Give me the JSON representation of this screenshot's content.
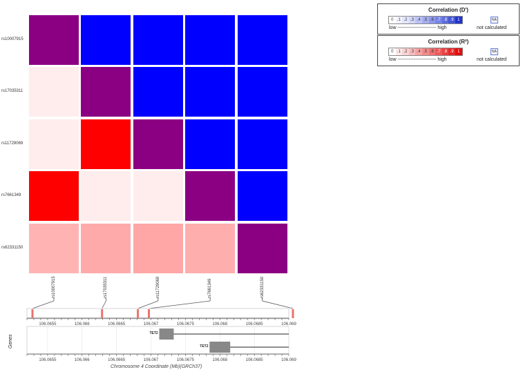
{
  "chart_data": {
    "type": "heatmap",
    "snps": [
      "rs10007915",
      "rs17035311",
      "rs11729069",
      "rs7661349",
      "rs62331150"
    ],
    "cells": [
      [
        "#8b0082",
        "#0000ff",
        "#0000ff",
        "#0000ff",
        "#0000ff"
      ],
      [
        "#ffeded",
        "#8b0082",
        "#0000ff",
        "#0000ff",
        "#0000ff"
      ],
      [
        "#ffeded",
        "#ff0000",
        "#8b0082",
        "#0000ff",
        "#0000ff"
      ],
      [
        "#ff0000",
        "#ffeded",
        "#ffeded",
        "#8b0082",
        "#0000ff"
      ],
      [
        "#ffb3b3",
        "#ffaaaa",
        "#ffa6a6",
        "#ffaeae",
        "#8b0082"
      ]
    ],
    "snp_positions": [
      106.06528,
      106.06629,
      106.06681,
      106.06697,
      106.06906
    ],
    "x_range": [
      106.0652,
      106.069
    ],
    "x_ticks": [
      "106.0655",
      "106.066",
      "106.0665",
      "106.067",
      "106.0675",
      "106.068",
      "106.0685",
      "106.069"
    ],
    "x_tick_values": [
      106.0655,
      106.066,
      106.0665,
      106.067,
      106.0675,
      106.068,
      106.0685,
      106.069
    ],
    "xlabel": "Chromosome 4 Coordinate (Mb)(GRCh37)",
    "genes_axis_label": "Genes",
    "genes": [
      {
        "name": "TET2",
        "start": 106.06712,
        "end": 106.069,
        "exon": [
          106.06712,
          106.06733
        ]
      },
      {
        "name": "TET2",
        "start": 106.06785,
        "end": 106.069,
        "exon": [
          106.06785,
          106.06815
        ]
      }
    ],
    "marker_color": "#e8736b"
  },
  "legend": {
    "dprime": {
      "title": "Correlation  (D')",
      "scale": [
        "0",
        ".1",
        ".2",
        ".3",
        ".4",
        ".5",
        ".6",
        ".7",
        ".8",
        ".9",
        "1"
      ],
      "colors": [
        "#ffffff",
        "#f2f2fd",
        "#e3e6fb",
        "#d1d6f8",
        "#bcc3f4",
        "#a6aeef",
        "#8f99ea",
        "#7884e4",
        "#5f6ddd",
        "#4556d6",
        "#2234ce"
      ],
      "na": "NA",
      "low_high": "low ------------------------ high",
      "not_calculated": "not calculated"
    },
    "r2": {
      "title": "Correlation  (R²)",
      "scale": [
        "0",
        ".1",
        ".2",
        ".3",
        ".4",
        ".5",
        ".6",
        ".7",
        ".8",
        ".9",
        "1"
      ],
      "colors": [
        "#ffffff",
        "#fde9e9",
        "#fbd3d3",
        "#f9bcbc",
        "#f6a4a4",
        "#f38c8c",
        "#f07373",
        "#ed5a5a",
        "#ea4040",
        "#e72727",
        "#e40d0d"
      ],
      "na": "NA",
      "low_high": "low ------------------------ high",
      "not_calculated": "not calculated"
    }
  }
}
